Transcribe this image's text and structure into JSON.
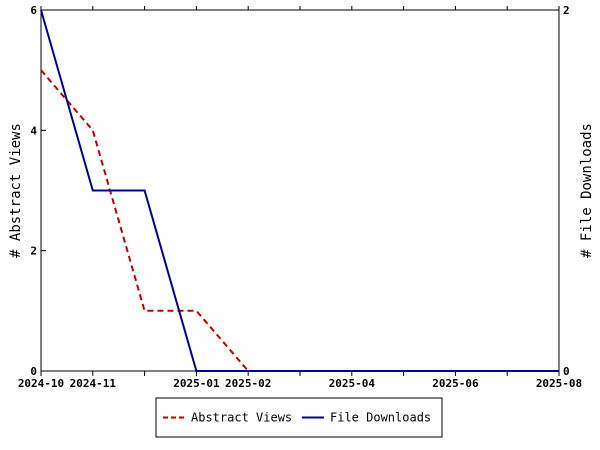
{
  "chart_data": {
    "type": "line",
    "title": "",
    "xlabel": "",
    "ylabel": "# Abstract Views",
    "y2label": "# File Downloads",
    "xlim": [
      "2024-10-01",
      "2025-08-01"
    ],
    "ylim": [
      0,
      6
    ],
    "y2lim": [
      0,
      2
    ],
    "grid": false,
    "legend_position": "bottom",
    "x_ticks": [
      "2024-10-01",
      "2024-11-01",
      "2025-01-01",
      "2025-02-01",
      "2025-04-01",
      "2025-06-01",
      "2025-08-01"
    ],
    "x_tick_labels": [
      "2024-10",
      "2024-11",
      "2025-01",
      "2025-02",
      "2025-04",
      "2025-06",
      "2025-08"
    ],
    "x_minor_ticks": [
      "2024-12-01",
      "2025-03-01",
      "2025-05-01",
      "2025-07-01"
    ],
    "y_ticks": [
      0,
      2,
      4,
      6
    ],
    "y_tick_labels": [
      "0",
      "2",
      "4",
      "6"
    ],
    "y2_ticks": [
      0,
      2
    ],
    "y2_tick_labels": [
      "0",
      "2"
    ],
    "series": [
      {
        "name": "Abstract Views",
        "axis": "left",
        "color": "#c00000",
        "style": "dashed",
        "x": [
          "2024-10-01",
          "2024-11-01",
          "2024-12-01",
          "2025-01-01",
          "2025-02-01",
          "2025-03-01",
          "2025-04-01",
          "2025-05-01",
          "2025-06-01",
          "2025-07-01",
          "2025-08-01"
        ],
        "values": [
          5,
          4,
          1,
          1,
          0,
          0,
          0,
          0,
          0,
          0,
          0
        ]
      },
      {
        "name": "File Downloads",
        "axis": "right",
        "color": "#0000a0",
        "style": "solid",
        "x": [
          "2024-10-01",
          "2024-11-01",
          "2024-12-01",
          "2025-01-01",
          "2025-02-01",
          "2025-03-01",
          "2025-04-01",
          "2025-05-01",
          "2025-06-01",
          "2025-07-01",
          "2025-08-01"
        ],
        "values": [
          2,
          1,
          1,
          0,
          0,
          0,
          0,
          0,
          0,
          0,
          0
        ]
      }
    ]
  }
}
